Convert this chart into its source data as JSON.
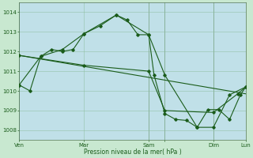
{
  "bg_color": "#c8e8d0",
  "plot_bg_color": "#c0e0e8",
  "grid_color": "#88bb99",
  "line_color": "#1a5c1a",
  "vline_color": "#996666",
  "xlabel_text": "Pression niveau de la mer( hPa )",
  "ylim": [
    1007.5,
    1014.5
  ],
  "yticks": [
    1008,
    1009,
    1010,
    1011,
    1012,
    1013,
    1014
  ],
  "xlim": [
    0,
    168
  ],
  "xtick_positions": [
    0,
    48,
    96,
    108,
    144,
    168
  ],
  "xtick_labels": [
    "Ven",
    "Mar",
    "Sam",
    "",
    "Dim",
    "Lun"
  ],
  "vline_positions": [
    0,
    96,
    108,
    144,
    168
  ],
  "series1_x": [
    0,
    8,
    16,
    24,
    32,
    40,
    48,
    60,
    72,
    80,
    88,
    96,
    100,
    108,
    116,
    124,
    132,
    140,
    148,
    156,
    164,
    168
  ],
  "series1_y": [
    1010.3,
    1010.0,
    1011.75,
    1012.1,
    1012.0,
    1012.1,
    1012.9,
    1013.3,
    1013.85,
    1013.6,
    1012.85,
    1012.85,
    1010.8,
    1008.85,
    1008.55,
    1008.5,
    1008.15,
    1009.05,
    1009.05,
    1008.55,
    1009.8,
    1010.2
  ],
  "series2_x": [
    0,
    16,
    32,
    48,
    72,
    96,
    108,
    132,
    144,
    156,
    168
  ],
  "series2_y": [
    1010.3,
    1011.75,
    1012.1,
    1012.9,
    1013.85,
    1012.85,
    1010.8,
    1008.15,
    1008.15,
    1009.8,
    1010.2
  ],
  "series3_x": [
    0,
    168
  ],
  "series3_y": [
    1011.8,
    1009.85
  ],
  "series4_x": [
    0,
    48,
    96,
    108,
    144,
    162,
    168
  ],
  "series4_y": [
    1011.8,
    1011.3,
    1011.0,
    1009.0,
    1008.9,
    1009.85,
    1010.2
  ]
}
